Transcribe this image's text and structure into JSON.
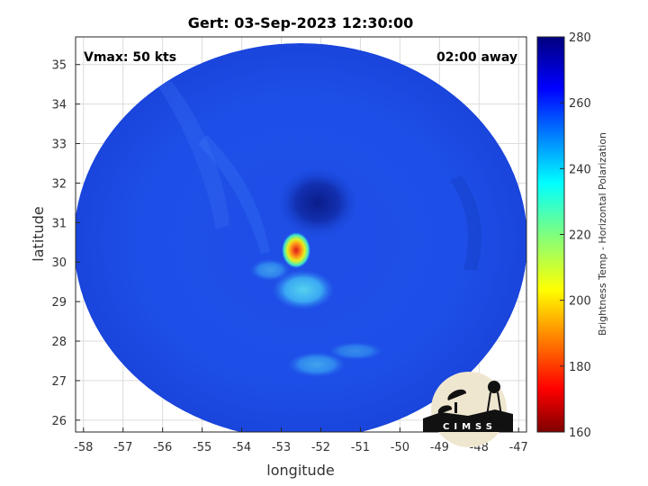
{
  "title": "Gert: 03-Sep-2023 12:30:00",
  "vmax_label": "Vmax: 50 kts",
  "time_away": "02:00 away",
  "xlabel": "longitude",
  "ylabel": "latitude",
  "x_ticks": [
    "-58",
    "-57",
    "-56",
    "-55",
    "-54",
    "-53",
    "-52",
    "-51",
    "-50",
    "-49",
    "-48",
    "-47"
  ],
  "y_ticks": [
    "35",
    "34",
    "33",
    "32",
    "31",
    "30",
    "29",
    "28",
    "27",
    "26"
  ],
  "colorbar": {
    "label": "Brightness Temp - Horizontal Polarization",
    "ticks": [
      "280",
      "260",
      "240",
      "220",
      "200",
      "180",
      "160"
    ]
  },
  "logo": {
    "text": "CIMSS"
  },
  "map": {
    "lon_range": [
      -58.2,
      -46.8
    ],
    "lat_range": [
      25.7,
      35.7
    ],
    "storm_center": {
      "lon": -52.6,
      "lat": 30.3
    },
    "swath_center": {
      "lon": -52.6,
      "lat": 30.7
    }
  }
}
